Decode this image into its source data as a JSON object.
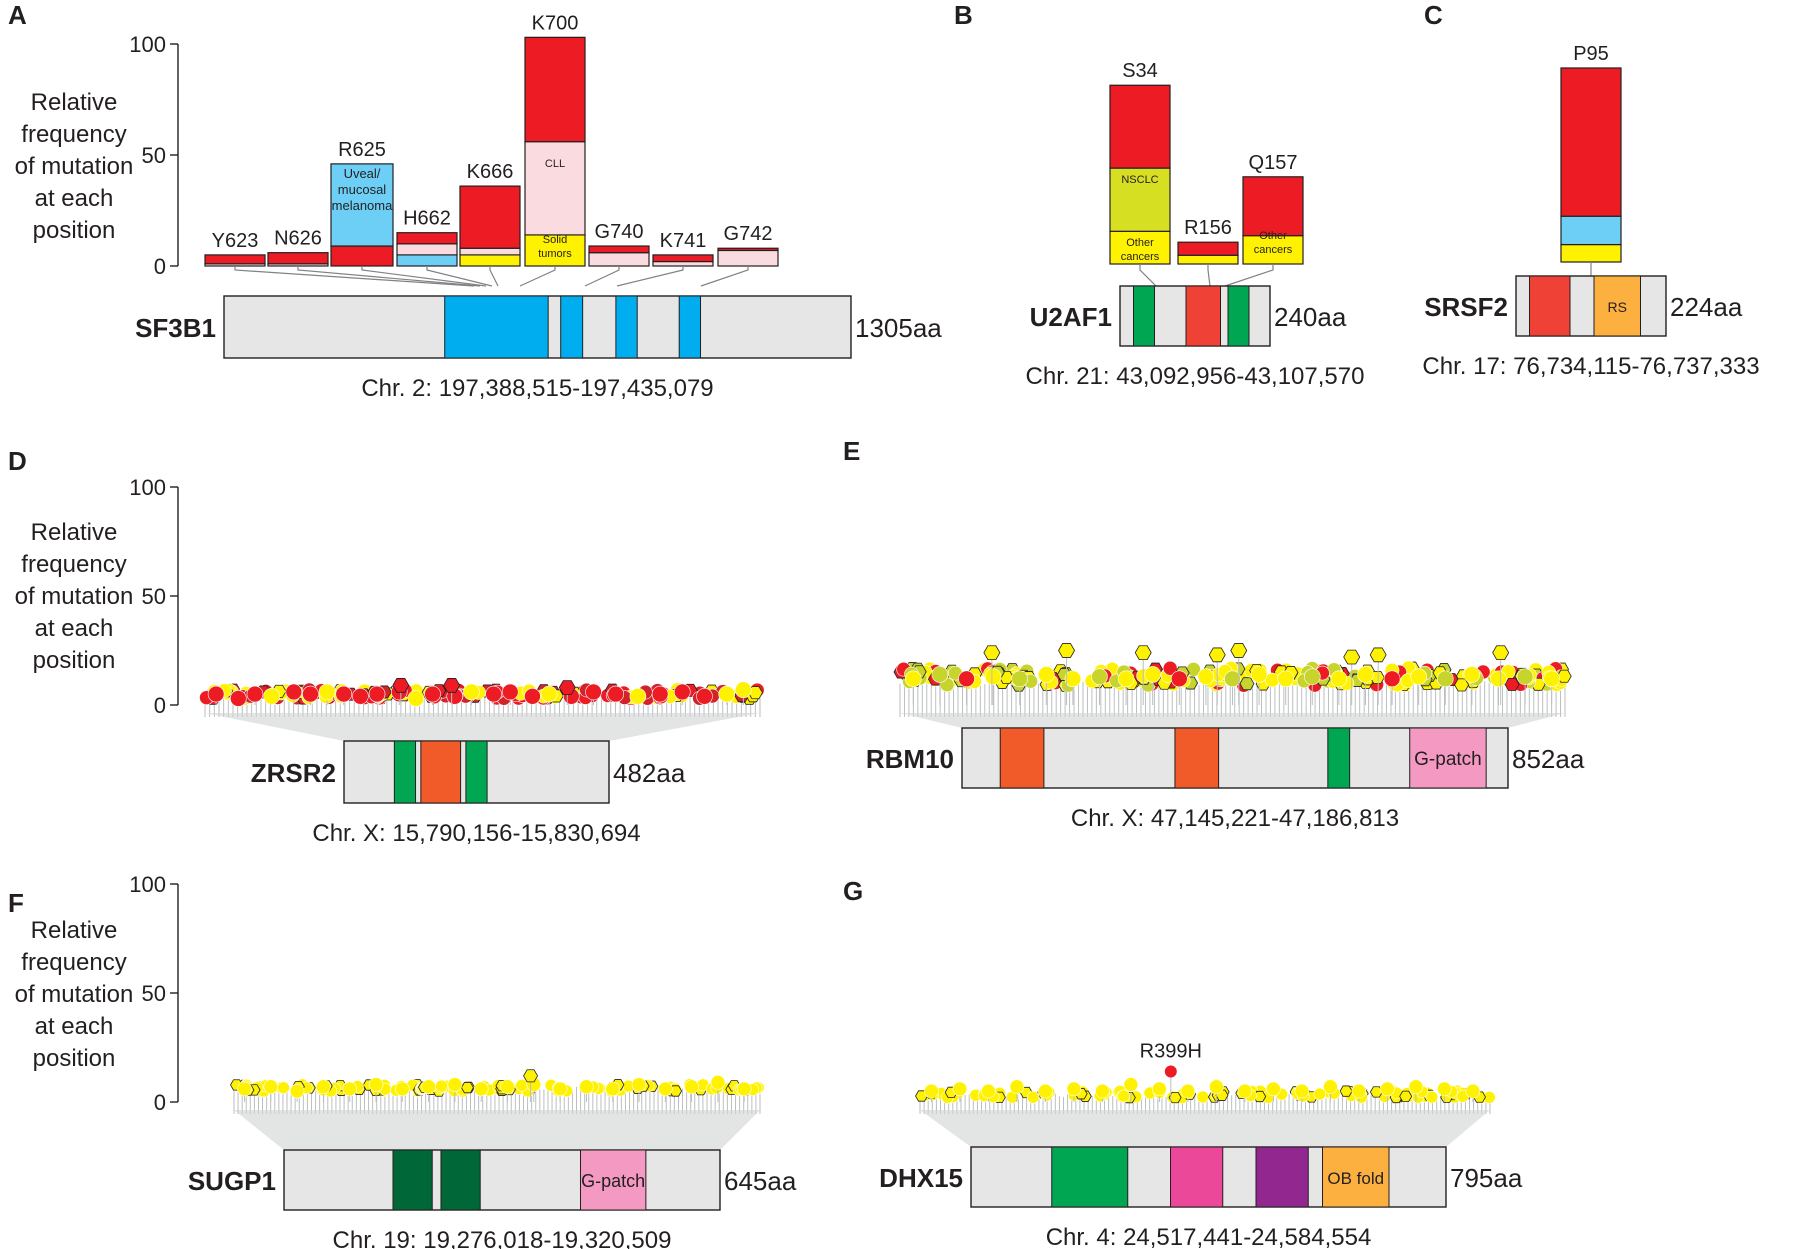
{
  "colors": {
    "red": "#ed1c24",
    "pink": "#fadbe0",
    "blue": "#6dcff6",
    "yellow": "#fff200",
    "lime": "#d7df23",
    "gray": "#e6e6e6",
    "domainBlue": "#00aeef",
    "green": "#00a651",
    "darkGreen": "#006838",
    "orange": "#f15a29",
    "redBox": "#ef4136",
    "rsOrange": "#fbb040",
    "gpatch": "#f49ac2",
    "magenta": "#ec4899",
    "purple": "#92278f",
    "ob": "#fbb040",
    "darkRed": "#d2232a",
    "olive": "#c7d42b"
  },
  "y_axis": {
    "ticks": [
      "0",
      "50",
      "100"
    ],
    "label_lines": [
      "Relative",
      "frequency",
      "of mutation",
      "at each",
      "position"
    ]
  },
  "chart_data": [
    {
      "panel": "A",
      "type": "bar",
      "stacked": true,
      "gene": "SF3B1",
      "length": "1305aa",
      "coords": "Chr. 2: 197,388,515-197,435,079",
      "ylim": [
        0,
        100
      ],
      "categories": [
        "Y623",
        "N626",
        "R625",
        "H662",
        "K666",
        "K700",
        "G740",
        "K741",
        "G742"
      ],
      "series": [
        {
          "name": "Solid tumors",
          "color": "yellow",
          "values": [
            0,
            0,
            0,
            0,
            5,
            14,
            0,
            0,
            0
          ]
        },
        {
          "name": "Uveal/mucosal melanoma",
          "color": "blue",
          "values": [
            0,
            0,
            0,
            5,
            0,
            0,
            0,
            0,
            0
          ]
        },
        {
          "name": "CLL",
          "color": "pink",
          "values": [
            1,
            1,
            0,
            5,
            3,
            42,
            6,
            2,
            7
          ]
        },
        {
          "name": "Other",
          "color": "red",
          "values": [
            4,
            5,
            9,
            5,
            28,
            47,
            3,
            3,
            1
          ]
        },
        {
          "name": "Uveal/mucosal melanoma (R625)",
          "color": "blue",
          "values": [
            0,
            0,
            37,
            0,
            0,
            0,
            0,
            0,
            0
          ]
        }
      ],
      "segment_labels": {
        "R625": "Uveal/ mucosal melanoma",
        "K700_mid": "CLL",
        "K700_low": "Solid tumors"
      }
    },
    {
      "panel": "B",
      "type": "bar",
      "stacked": true,
      "gene": "U2AF1",
      "length": "240aa",
      "coords": "Chr. 21: 43,092,956-43,107,570",
      "ylim": [
        0,
        100
      ],
      "categories": [
        "S34",
        "R156",
        "Q157"
      ],
      "series": [
        {
          "name": "Other cancers",
          "color": "yellow",
          "values": [
            15,
            4,
            13
          ]
        },
        {
          "name": "NSCLC",
          "color": "lime",
          "values": [
            29,
            0,
            0
          ]
        },
        {
          "name": "Other",
          "color": "red",
          "values": [
            38,
            6,
            27
          ]
        }
      ],
      "segment_labels": {
        "S34_mid": "NSCLC",
        "S34_low": "Other cancers",
        "Q157_low": "Other cancers"
      }
    },
    {
      "panel": "C",
      "type": "bar",
      "stacked": true,
      "gene": "SRSF2",
      "length": "224aa",
      "coords": "Chr. 17: 76,734,115-76,737,333",
      "ylim": [
        0,
        100
      ],
      "categories": [
        "P95"
      ],
      "series": [
        {
          "name": "yellow",
          "color": "yellow",
          "values": [
            8
          ]
        },
        {
          "name": "blue",
          "color": "blue",
          "values": [
            13
          ]
        },
        {
          "name": "red",
          "color": "red",
          "values": [
            68
          ]
        }
      ],
      "domains": [
        "RS"
      ]
    },
    {
      "panel": "D",
      "type": "scatter",
      "gene": "ZRSR2",
      "length": "482aa",
      "coords": "Chr. X: 15,790,156-15,830,694",
      "ylim": [
        0,
        100
      ],
      "baseline_level": 3,
      "peaks": [
        9,
        9,
        8
      ],
      "points": [
        {
          "x": 0.02,
          "y": 5,
          "c": "red"
        },
        {
          "x": 0.06,
          "y": 3,
          "c": "red"
        },
        {
          "x": 0.09,
          "y": 5,
          "c": "red"
        },
        {
          "x": 0.12,
          "y": 4,
          "c": "yellow"
        },
        {
          "x": 0.16,
          "y": 6,
          "c": "red"
        },
        {
          "x": 0.19,
          "y": 5,
          "c": "red"
        },
        {
          "x": 0.22,
          "y": 6,
          "c": "yellow"
        },
        {
          "x": 0.25,
          "y": 5,
          "c": "red"
        },
        {
          "x": 0.28,
          "y": 4,
          "c": "red"
        },
        {
          "x": 0.31,
          "y": 5,
          "c": "red"
        },
        {
          "x": 0.35,
          "y": 6,
          "c": "red"
        },
        {
          "x": 0.38,
          "y": 3,
          "c": "yellow"
        },
        {
          "x": 0.41,
          "y": 5,
          "c": "red"
        },
        {
          "x": 0.45,
          "y": 4,
          "c": "red"
        },
        {
          "x": 0.48,
          "y": 6,
          "c": "yellow"
        },
        {
          "x": 0.52,
          "y": 5,
          "c": "red"
        },
        {
          "x": 0.55,
          "y": 6,
          "c": "red"
        },
        {
          "x": 0.59,
          "y": 4,
          "c": "red"
        },
        {
          "x": 0.62,
          "y": 5,
          "c": "yellow"
        },
        {
          "x": 0.66,
          "y": 4,
          "c": "red"
        },
        {
          "x": 0.7,
          "y": 6,
          "c": "red"
        },
        {
          "x": 0.74,
          "y": 5,
          "c": "red"
        },
        {
          "x": 0.78,
          "y": 4,
          "c": "yellow"
        },
        {
          "x": 0.82,
          "y": 5,
          "c": "red"
        },
        {
          "x": 0.86,
          "y": 6,
          "c": "red"
        },
        {
          "x": 0.9,
          "y": 4,
          "c": "red"
        },
        {
          "x": 0.94,
          "y": 5,
          "c": "yellow"
        },
        {
          "x": 0.97,
          "y": 7,
          "c": "yellow"
        }
      ],
      "domains": []
    },
    {
      "panel": "E",
      "type": "scatter",
      "gene": "RBM10",
      "length": "852aa",
      "coords": "Chr. X: 47,145,221-47,186,813",
      "ylim": [
        0,
        100
      ],
      "baseline_level": 9,
      "peaks": [
        24,
        25,
        24,
        25,
        23,
        22,
        23,
        24
      ],
      "points": [
        {
          "x": 0.02,
          "y": 12,
          "c": "yellow"
        },
        {
          "x": 0.06,
          "y": 14,
          "c": "olive"
        },
        {
          "x": 0.1,
          "y": 12,
          "c": "red"
        },
        {
          "x": 0.14,
          "y": 13,
          "c": "yellow"
        },
        {
          "x": 0.18,
          "y": 12,
          "c": "olive"
        },
        {
          "x": 0.22,
          "y": 14,
          "c": "yellow"
        },
        {
          "x": 0.26,
          "y": 12,
          "c": "yellow"
        },
        {
          "x": 0.3,
          "y": 13,
          "c": "olive"
        },
        {
          "x": 0.34,
          "y": 12,
          "c": "yellow"
        },
        {
          "x": 0.38,
          "y": 14,
          "c": "yellow"
        },
        {
          "x": 0.42,
          "y": 12,
          "c": "red"
        },
        {
          "x": 0.46,
          "y": 13,
          "c": "yellow"
        },
        {
          "x": 0.5,
          "y": 12,
          "c": "olive"
        },
        {
          "x": 0.54,
          "y": 14,
          "c": "yellow"
        },
        {
          "x": 0.58,
          "y": 12,
          "c": "yellow"
        },
        {
          "x": 0.62,
          "y": 13,
          "c": "olive"
        },
        {
          "x": 0.66,
          "y": 12,
          "c": "yellow"
        },
        {
          "x": 0.7,
          "y": 14,
          "c": "yellow"
        },
        {
          "x": 0.74,
          "y": 12,
          "c": "red"
        },
        {
          "x": 0.78,
          "y": 13,
          "c": "yellow"
        },
        {
          "x": 0.82,
          "y": 12,
          "c": "olive"
        },
        {
          "x": 0.86,
          "y": 14,
          "c": "yellow"
        },
        {
          "x": 0.9,
          "y": 12,
          "c": "yellow"
        },
        {
          "x": 0.94,
          "y": 13,
          "c": "olive"
        },
        {
          "x": 0.98,
          "y": 12,
          "c": "yellow"
        }
      ],
      "domains": [
        "G-patch"
      ]
    },
    {
      "panel": "F",
      "type": "scatter",
      "gene": "SUGP1",
      "length": "645aa",
      "coords": "Chr. 19: 19,276,018-19,320,509",
      "ylim": [
        0,
        100
      ],
      "baseline_level": 5,
      "peaks": [
        12
      ],
      "points": [
        {
          "x": 0.02,
          "y": 6,
          "c": "yellow"
        },
        {
          "x": 0.07,
          "y": 7,
          "c": "yellow"
        },
        {
          "x": 0.12,
          "y": 5,
          "c": "yellow"
        },
        {
          "x": 0.17,
          "y": 7,
          "c": "yellow"
        },
        {
          "x": 0.22,
          "y": 6,
          "c": "yellow"
        },
        {
          "x": 0.27,
          "y": 8,
          "c": "yellow"
        },
        {
          "x": 0.32,
          "y": 6,
          "c": "yellow"
        },
        {
          "x": 0.37,
          "y": 7,
          "c": "yellow"
        },
        {
          "x": 0.42,
          "y": 8,
          "c": "yellow"
        },
        {
          "x": 0.47,
          "y": 6,
          "c": "yellow"
        },
        {
          "x": 0.52,
          "y": 7,
          "c": "yellow"
        },
        {
          "x": 0.57,
          "y": 8,
          "c": "yellow"
        },
        {
          "x": 0.62,
          "y": 6,
          "c": "yellow"
        },
        {
          "x": 0.67,
          "y": 7,
          "c": "yellow"
        },
        {
          "x": 0.72,
          "y": 6,
          "c": "yellow"
        },
        {
          "x": 0.77,
          "y": 8,
          "c": "yellow"
        },
        {
          "x": 0.82,
          "y": 6,
          "c": "yellow"
        },
        {
          "x": 0.87,
          "y": 7,
          "c": "yellow"
        },
        {
          "x": 0.92,
          "y": 9,
          "c": "yellow"
        },
        {
          "x": 0.97,
          "y": 6,
          "c": "yellow"
        }
      ],
      "domains": [
        "G-patch"
      ]
    },
    {
      "panel": "G",
      "type": "scatter",
      "gene": "DHX15",
      "length": "795aa",
      "coords": "Chr. 4: 24,517,441-24,584,554",
      "ylim": [
        0,
        100
      ],
      "baseline_level": 2,
      "annotation": "R399H",
      "annotation_value": 14,
      "points": [
        {
          "x": 0.02,
          "y": 5,
          "c": "yellow"
        },
        {
          "x": 0.07,
          "y": 6,
          "c": "yellow"
        },
        {
          "x": 0.12,
          "y": 5,
          "c": "yellow"
        },
        {
          "x": 0.17,
          "y": 7,
          "c": "yellow"
        },
        {
          "x": 0.22,
          "y": 5,
          "c": "yellow"
        },
        {
          "x": 0.27,
          "y": 6,
          "c": "yellow"
        },
        {
          "x": 0.32,
          "y": 5,
          "c": "yellow"
        },
        {
          "x": 0.37,
          "y": 8,
          "c": "yellow"
        },
        {
          "x": 0.42,
          "y": 6,
          "c": "yellow"
        },
        {
          "x": 0.47,
          "y": 5,
          "c": "yellow"
        },
        {
          "x": 0.52,
          "y": 7,
          "c": "yellow"
        },
        {
          "x": 0.57,
          "y": 5,
          "c": "yellow"
        },
        {
          "x": 0.62,
          "y": 6,
          "c": "yellow"
        },
        {
          "x": 0.67,
          "y": 5,
          "c": "yellow"
        },
        {
          "x": 0.72,
          "y": 7,
          "c": "yellow"
        },
        {
          "x": 0.77,
          "y": 5,
          "c": "yellow"
        },
        {
          "x": 0.82,
          "y": 6,
          "c": "yellow"
        },
        {
          "x": 0.87,
          "y": 7,
          "c": "yellow"
        },
        {
          "x": 0.92,
          "y": 6,
          "c": "yellow"
        },
        {
          "x": 0.97,
          "y": 5,
          "c": "yellow"
        }
      ],
      "domains": [
        "OB fold"
      ]
    }
  ]
}
